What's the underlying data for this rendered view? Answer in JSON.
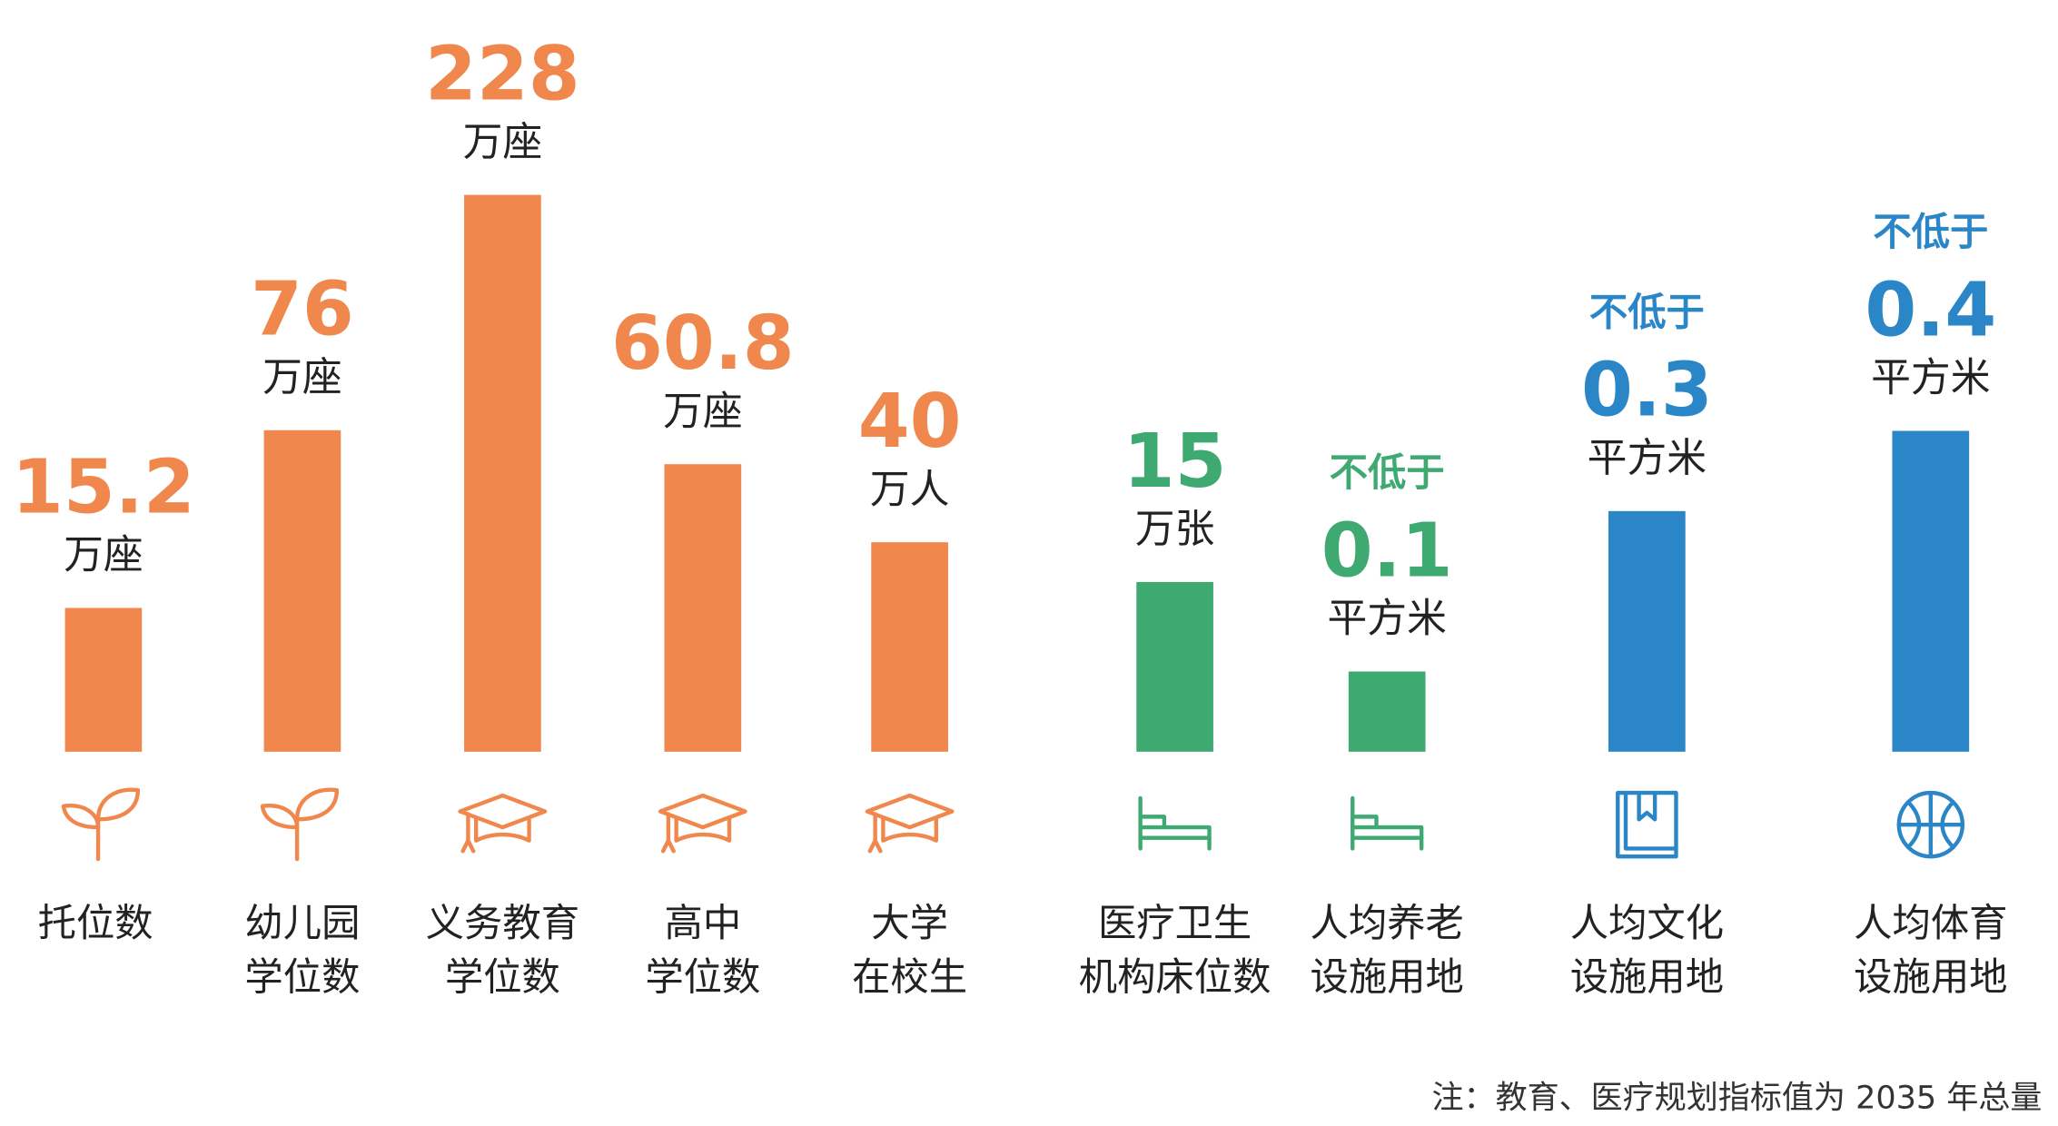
{
  "items": [
    {
      "label": [
        "托位数"
      ],
      "value": 15.2,
      "unit": "万座",
      "color": "#f0874c"
    },
    {
      "label": [
        "幼儿园",
        "学位数"
      ],
      "value": 76,
      "unit": "万座",
      "color": "#f0874c"
    },
    {
      "label": [
        "义务教育",
        "学位数"
      ],
      "value": 228,
      "unit": "万座",
      "color": "#f0874c"
    },
    {
      "label": [
        "高中",
        "学位数"
      ],
      "value": 60.8,
      "unit": "万座",
      "color": "#f0874c"
    },
    {
      "label": [
        "大学",
        "在校生"
      ],
      "value": 40,
      "unit": "万人",
      "color": "#f0874c"
    },
    {
      "label": [
        "医疗卫生",
        "机构床位数"
      ],
      "value": 15,
      "unit": "万张",
      "color": "#3fa972"
    },
    {
      "label": [
        "人均养老",
        "设施用地"
      ],
      "prefix": "不低于",
      "value": 0.1,
      "unit": "平方米",
      "color": "#3fa972"
    },
    {
      "label": [
        "人均文化",
        "设施用地"
      ],
      "prefix": "不低于",
      "value": 0.3,
      "unit": "平方米",
      "color": "#2a86c6"
    },
    {
      "label": [
        "人均体育",
        "设施用地"
      ],
      "prefix": "不低于",
      "value": 0.4,
      "unit": "平方米",
      "color": "#2a86c6"
    }
  ],
  "note": "注：教育、医疗规划指标值为 2035 年总量"
}
